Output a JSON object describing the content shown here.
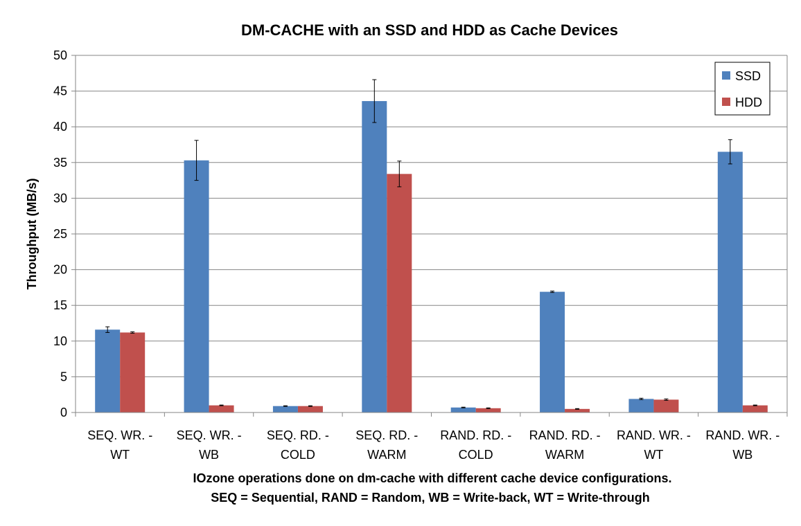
{
  "chart_data": {
    "type": "bar",
    "title": "DM-CACHE with an SSD and HDD as Cache Devices",
    "ylabel": "Throughput (MB/s)",
    "xlabel_lines": [
      "IOzone operations done on dm-cache with different cache device configurations.",
      "SEQ = Sequential, RAND = Random, WB = Write-back, WT = Write-through"
    ],
    "ylim": [
      0,
      50
    ],
    "yticks": [
      "0",
      "5",
      "10",
      "15",
      "20",
      "25",
      "30",
      "35",
      "40",
      "45",
      "50"
    ],
    "grid": true,
    "legend_position": "top-right",
    "categories": [
      [
        "SEQ. WR. -",
        "WT"
      ],
      [
        "SEQ. WR. -",
        "WB"
      ],
      [
        "SEQ. RD. -",
        "COLD"
      ],
      [
        "SEQ. RD. -",
        "WARM"
      ],
      [
        "RAND. RD. -",
        "COLD"
      ],
      [
        "RAND. RD. -",
        "WARM"
      ],
      [
        "RAND. WR. -",
        "WT"
      ],
      [
        "RAND. WR. -",
        "WB"
      ]
    ],
    "series": [
      {
        "name": "SSD",
        "color": "#4F81BD",
        "values": [
          11.6,
          35.3,
          0.9,
          43.6,
          0.7,
          16.9,
          1.9,
          36.5
        ],
        "errors": [
          0.4,
          2.8,
          0.05,
          3.0,
          0.05,
          0.1,
          0.1,
          1.7
        ]
      },
      {
        "name": "HDD",
        "color": "#C0504D",
        "values": [
          11.2,
          1.0,
          0.9,
          33.4,
          0.6,
          0.5,
          1.8,
          1.0
        ],
        "errors": [
          0.1,
          0.05,
          0.05,
          1.8,
          0.05,
          0.05,
          0.1,
          0.05
        ]
      }
    ]
  }
}
